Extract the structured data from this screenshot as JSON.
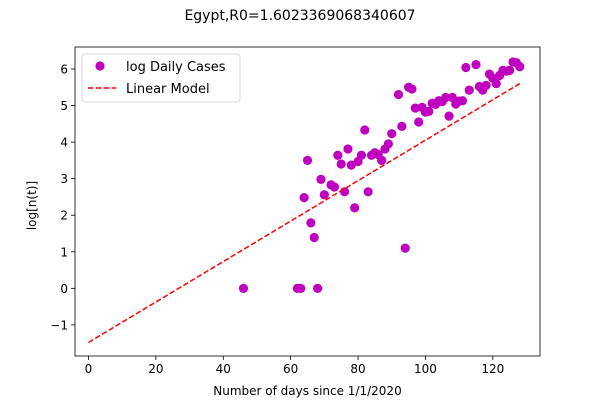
{
  "chart_data": {
    "type": "scatter",
    "title": "Egypt,R0=1.6023369068340607",
    "xlabel": "Number of days since 1/1/2020",
    "ylabel": "log[n(t)]",
    "xlim": [
      -4,
      134
    ],
    "ylim": [
      -1.85,
      6.6
    ],
    "xticks": [
      0,
      20,
      40,
      60,
      80,
      100,
      120
    ],
    "yticks": [
      -1,
      0,
      1,
      2,
      3,
      4,
      5,
      6
    ],
    "ytick_labels": [
      "−1",
      "0",
      "1",
      "2",
      "3",
      "4",
      "5",
      "6"
    ],
    "legend": {
      "placement": "top-left",
      "entries": [
        "log Daily Cases",
        "Linear Model"
      ]
    },
    "series": [
      {
        "name": "log Daily Cases",
        "kind": "scatter",
        "color": "#bf00bf",
        "points": [
          [
            46,
            0
          ],
          [
            62,
            0
          ],
          [
            63,
            0
          ],
          [
            64,
            2.48
          ],
          [
            65,
            3.5
          ],
          [
            66,
            1.79
          ],
          [
            67,
            1.39
          ],
          [
            68,
            0
          ],
          [
            69,
            2.98
          ],
          [
            70,
            2.56
          ],
          [
            72,
            2.83
          ],
          [
            73,
            2.77
          ],
          [
            74,
            3.64
          ],
          [
            75,
            3.4
          ],
          [
            76,
            2.64
          ],
          [
            77,
            3.81
          ],
          [
            78,
            3.37
          ],
          [
            79,
            2.2
          ],
          [
            80,
            3.47
          ],
          [
            81,
            3.64
          ],
          [
            82,
            4.33
          ],
          [
            83,
            2.64
          ],
          [
            84,
            3.64
          ],
          [
            85,
            3.71
          ],
          [
            86,
            3.66
          ],
          [
            87,
            3.5
          ],
          [
            88,
            3.81
          ],
          [
            89,
            3.95
          ],
          [
            90,
            4.23
          ],
          [
            92,
            5.3
          ],
          [
            93,
            4.43
          ],
          [
            94,
            1.1
          ],
          [
            95,
            5.5
          ],
          [
            96,
            5.45
          ],
          [
            97,
            4.93
          ],
          [
            98,
            4.55
          ],
          [
            99,
            4.95
          ],
          [
            100,
            4.82
          ],
          [
            101,
            4.84
          ],
          [
            102,
            5.06
          ],
          [
            103,
            5.03
          ],
          [
            104,
            5.13
          ],
          [
            105,
            5.11
          ],
          [
            106,
            5.22
          ],
          [
            107,
            4.71
          ],
          [
            108,
            5.22
          ],
          [
            109,
            5.04
          ],
          [
            110,
            5.12
          ],
          [
            111,
            5.13
          ],
          [
            112,
            6.04
          ],
          [
            113,
            5.42
          ],
          [
            115,
            6.12
          ],
          [
            116,
            5.52
          ],
          [
            117,
            5.42
          ],
          [
            118,
            5.55
          ],
          [
            119,
            5.86
          ],
          [
            120,
            5.75
          ],
          [
            121,
            5.6
          ],
          [
            122,
            5.82
          ],
          [
            123,
            5.96
          ],
          [
            124,
            5.94
          ],
          [
            125,
            5.96
          ],
          [
            126,
            6.19
          ],
          [
            127,
            6.17
          ],
          [
            128,
            6.06
          ]
        ]
      },
      {
        "name": "Linear Model",
        "kind": "line",
        "color": "#ff0000",
        "dash": "dashed",
        "points": [
          [
            0,
            -1.48
          ],
          [
            128,
            5.6
          ]
        ]
      }
    ]
  }
}
